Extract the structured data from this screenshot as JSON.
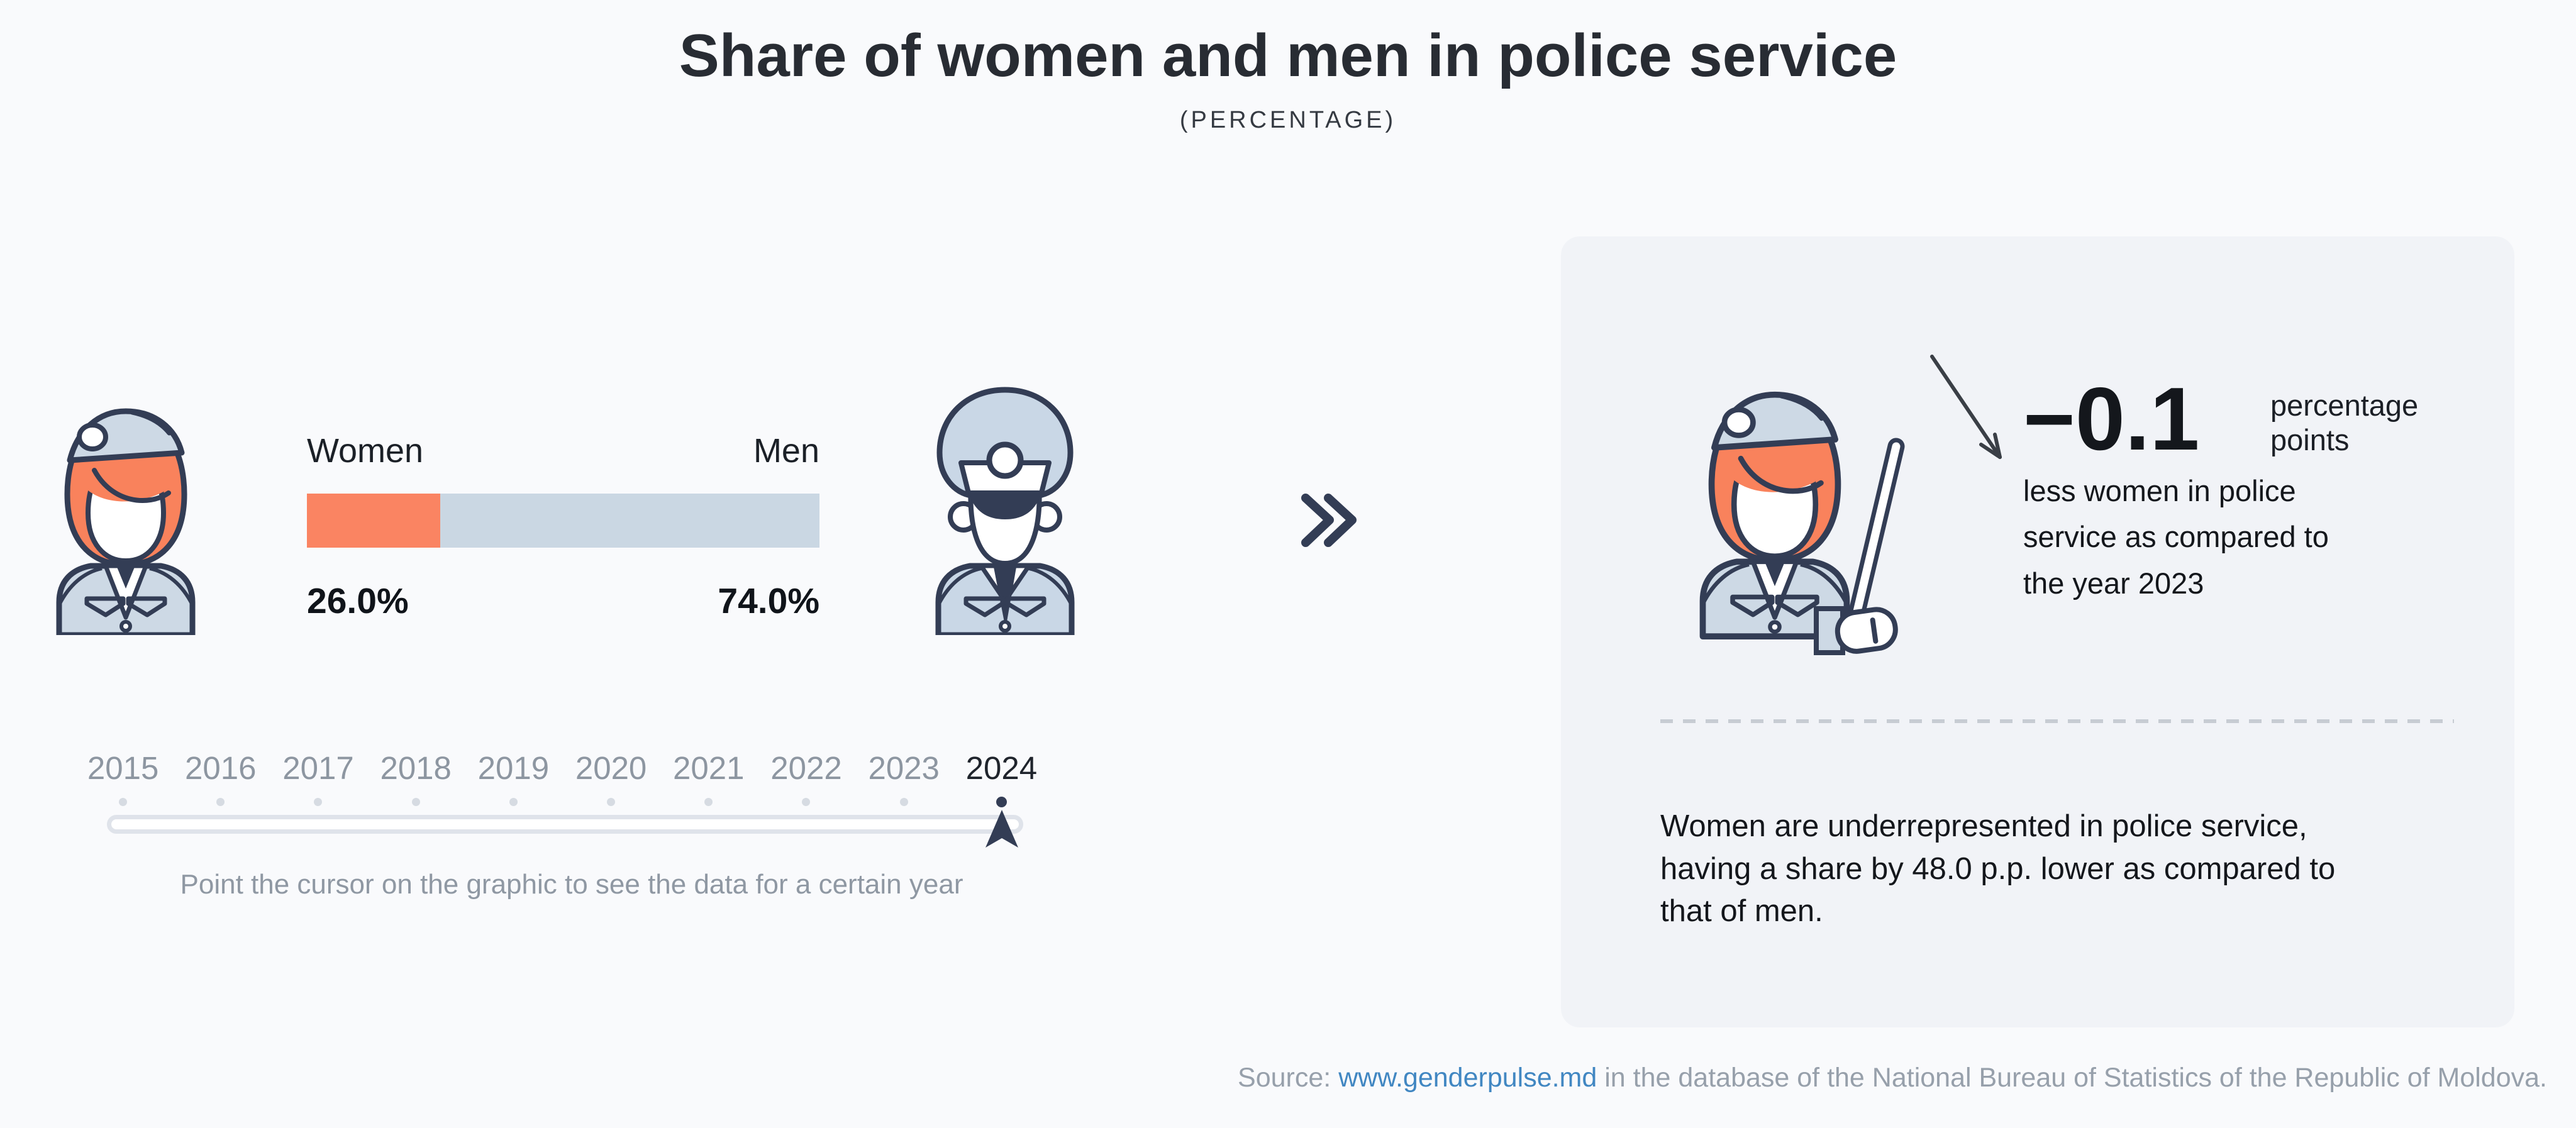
{
  "header": {
    "title": "Share of women and men in police service",
    "subtitle": "(PERCENTAGE)"
  },
  "chart_data": {
    "type": "bar",
    "title": "Share of women and men in police service",
    "unit": "percentage",
    "categories": [
      "Women",
      "Men"
    ],
    "values": [
      26.0,
      74.0
    ],
    "value_labels": [
      "26.0%",
      "74.0%"
    ],
    "selected_year": "2024",
    "colors": {
      "women": "#fa8462",
      "men": "#cad7e3"
    }
  },
  "bar_section": {
    "women_label": "Women",
    "men_label": "Men",
    "women_value": "26.0%",
    "men_value": "74.0%"
  },
  "timeline": {
    "years": [
      "2015",
      "2016",
      "2017",
      "2018",
      "2019",
      "2020",
      "2021",
      "2022",
      "2023",
      "2024"
    ],
    "selected_year": "2024",
    "hint": "Point the cursor on the graphic to see the data for a certain year"
  },
  "card": {
    "delta_value": "−0.1",
    "delta_unit_lines": [
      "percentage",
      "points"
    ],
    "delta_desc_lines": [
      "less women in police",
      "service as compared to",
      "the year 2023"
    ],
    "note_lines": [
      "Women are underrepresented in police service,",
      "having a share by 48.0 p.p. lower as compared to",
      "that of men."
    ]
  },
  "source": {
    "prefix": "Source: ",
    "link_text": "www.genderpulse.md",
    "suffix": " in the database of the National Bureau of Statistics of the Republic of Moldova."
  },
  "colors": {
    "accent_orange": "#fa8462",
    "bar_blue": "#cad7e3",
    "icon_navy": "#333d55",
    "link_blue": "#4187c2",
    "card_bg": "#f1f3f7",
    "page_bg": "#f9fafc"
  }
}
